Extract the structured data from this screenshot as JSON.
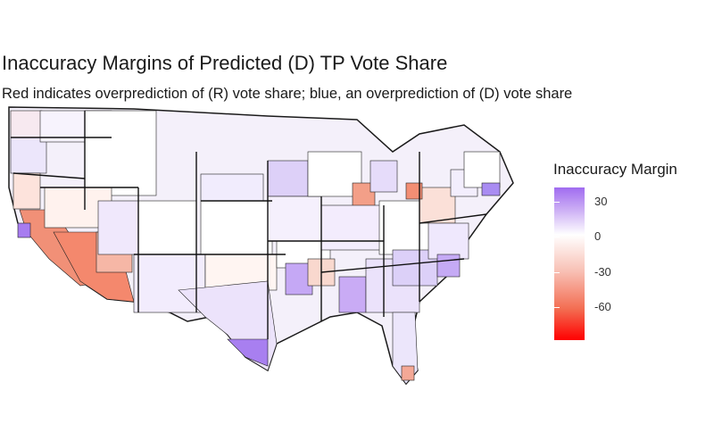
{
  "title": "Inaccuracy Margins of Predicted (D) TP Vote Share",
  "subtitle": "Red indicates overprediction of (R) vote share; blue, an overprediction of (D) vote share",
  "legend": {
    "title": "Inaccuracy Margin",
    "ticks": [
      "30",
      "0",
      "-30",
      "-60"
    ],
    "colors": {
      "high": "#a06cf0",
      "mid": "#ffffff",
      "low": "#ff0000"
    }
  },
  "map": {
    "region": "Contiguous United States congressional districts",
    "border_color": "#1a1a1a"
  }
}
